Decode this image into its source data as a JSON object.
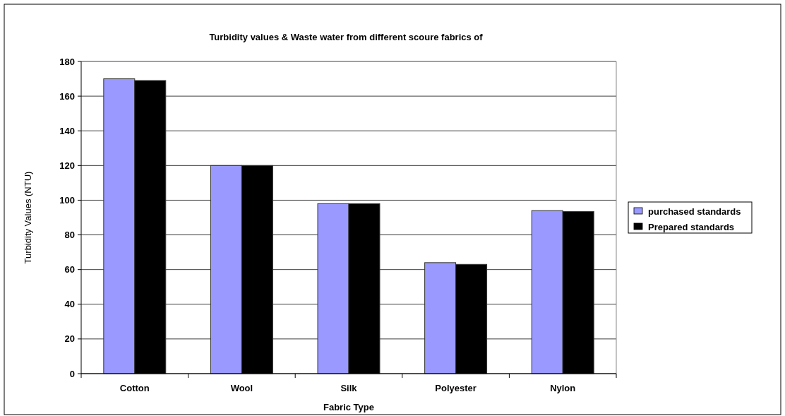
{
  "chart_data": {
    "type": "bar",
    "title": "Turbidity values & Waste water from different scoure fabrics of",
    "xlabel": "Fabric Type",
    "ylabel": "Turbidity Values (NTU)",
    "categories": [
      "Cotton",
      "Wool",
      "Silk",
      "Polyester",
      "Nylon"
    ],
    "series": [
      {
        "name": "purchased standards",
        "color": "#9999ff",
        "values": [
          170,
          120,
          98,
          64,
          94
        ]
      },
      {
        "name": "Prepared standards",
        "color": "#000000",
        "values": [
          169,
          120,
          98,
          63,
          93.5
        ]
      }
    ],
    "ylim": [
      0,
      180
    ],
    "yticks": [
      0,
      20,
      40,
      60,
      80,
      100,
      120,
      140,
      160,
      180
    ],
    "grid": "y",
    "legend": "right"
  }
}
